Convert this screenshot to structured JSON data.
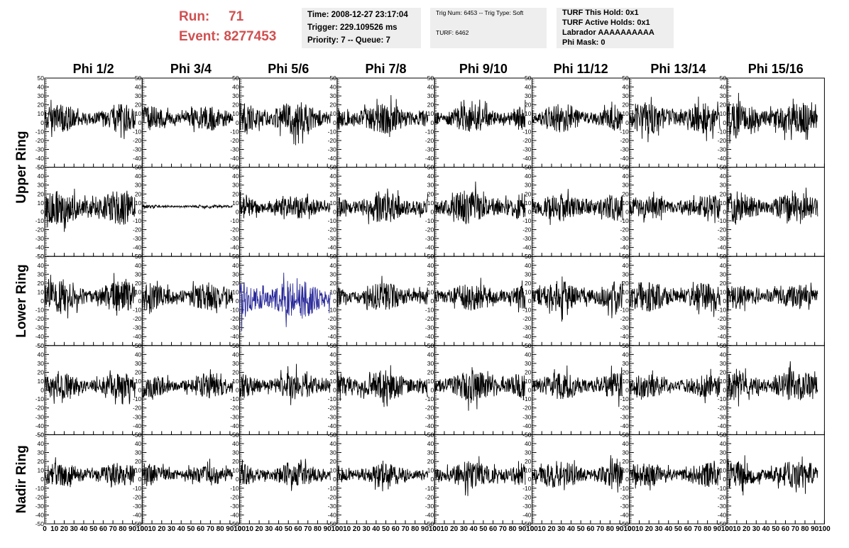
{
  "run_info": {
    "run_label": "Run:",
    "run_value": "71",
    "event_label": "Event:",
    "event_value": "8277453"
  },
  "header_boxes": {
    "time": "Time: 2008-12-27 23:17:04",
    "trigger": "Trigger: 229.109526 ms",
    "priority": "Priority: 7 -- Queue: 7",
    "trig_num": "Trig Num: 6453 -- Trig Type: Soft",
    "turf": "TURF: 6462",
    "turf_this_hold": "TURF This Hold: 0x1",
    "turf_active_holds": "TURF Active Holds: 0x1",
    "labrador": "Labrador AAAAAAAAAA",
    "phi_mask": "Phi Mask: 0"
  },
  "colors": {
    "trace": "#000000",
    "highlight_trace": "#2a2a9a",
    "run_text": "#d05050",
    "box_background": "#eeeeee"
  },
  "chart_data": {
    "type": "line",
    "column_labels": [
      "Phi 1/2",
      "Phi 3/4",
      "Phi 5/6",
      "Phi 7/8",
      "Phi 9/10",
      "Phi 11/12",
      "Phi 13/14",
      "Phi 15/16"
    ],
    "ring_labels": [
      "Upper Ring",
      "Lower Ring",
      "Nadir Ring"
    ],
    "rows": 5,
    "xlim": [
      0,
      100
    ],
    "ylim": [
      -50,
      50
    ],
    "x_tick_labels": [
      "0",
      "10",
      "20",
      "30",
      "40",
      "50",
      "60",
      "70",
      "80",
      "90",
      "100"
    ],
    "y_tick_labels": [
      "50",
      "40",
      "30",
      "20",
      "10",
      "0",
      "-10",
      "-20",
      "-30",
      "-40",
      "-50"
    ],
    "samples_per_trace": 260,
    "trace_x_range": [
      0,
      93
    ],
    "trace_amplitude": [
      [
        16,
        14,
        20,
        18,
        16,
        16,
        18,
        20
      ],
      [
        20,
        2,
        14,
        18,
        20,
        16,
        14,
        18
      ],
      [
        18,
        16,
        24,
        16,
        16,
        18,
        18,
        14
      ],
      [
        15,
        14,
        16,
        18,
        18,
        16,
        14,
        18
      ],
      [
        14,
        12,
        14,
        14,
        16,
        16,
        14,
        16
      ]
    ],
    "trace_offset": [
      [
        5,
        5,
        5,
        5,
        5,
        5,
        5,
        5
      ],
      [
        5,
        6,
        5,
        5,
        5,
        5,
        5,
        5
      ],
      [
        5,
        5,
        2,
        5,
        5,
        5,
        5,
        5
      ],
      [
        5,
        5,
        5,
        5,
        5,
        5,
        5,
        5
      ],
      [
        5,
        5,
        5,
        5,
        5,
        5,
        5,
        5
      ]
    ],
    "highlighted_panel": [
      2,
      2
    ]
  }
}
